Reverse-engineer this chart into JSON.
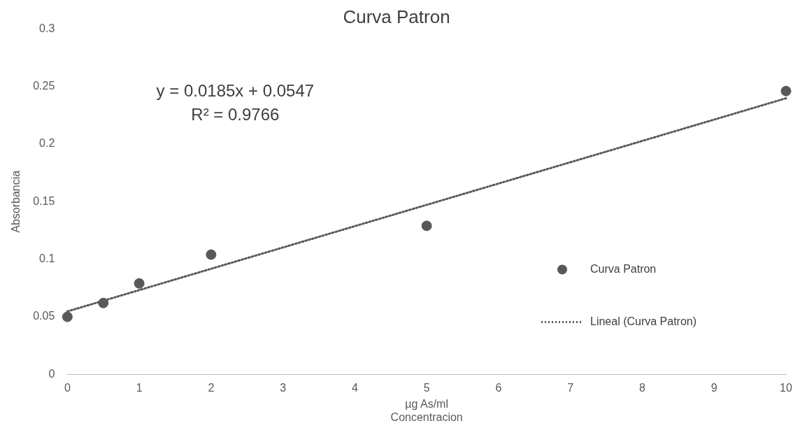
{
  "chart_data": {
    "type": "scatter",
    "title": "Curva Patron",
    "xlabel": "µg As/ml\nConcentracion",
    "ylabel": "Absorbancia",
    "xlim": [
      0,
      10
    ],
    "xticks": [
      0,
      1,
      2,
      3,
      4,
      5,
      6,
      7,
      8,
      9,
      10
    ],
    "ylim": [
      0,
      0.3
    ],
    "yticks": [
      0,
      0.05,
      0.1,
      0.15,
      0.2,
      0.25,
      0.3
    ],
    "grid": false,
    "legend": "bottom right",
    "marker": "circle",
    "annotations": [
      "y = 0.0185x + 0.0547",
      "R² = 0.9766"
    ],
    "series": [
      {
        "name": "Curva Patron",
        "color": "#595959",
        "x": [
          0,
          0.5,
          1,
          2,
          5,
          10
        ],
        "values": [
          0.05,
          0.062,
          0.079,
          0.104,
          0.129,
          0.246
        ]
      },
      {
        "name": "Lineal (Curva Patron)",
        "type": "line",
        "marker": "none",
        "line_style": "dotted",
        "color": "#595959",
        "x": [
          0,
          10
        ],
        "values": [
          0.0547,
          0.2397
        ]
      }
    ]
  }
}
